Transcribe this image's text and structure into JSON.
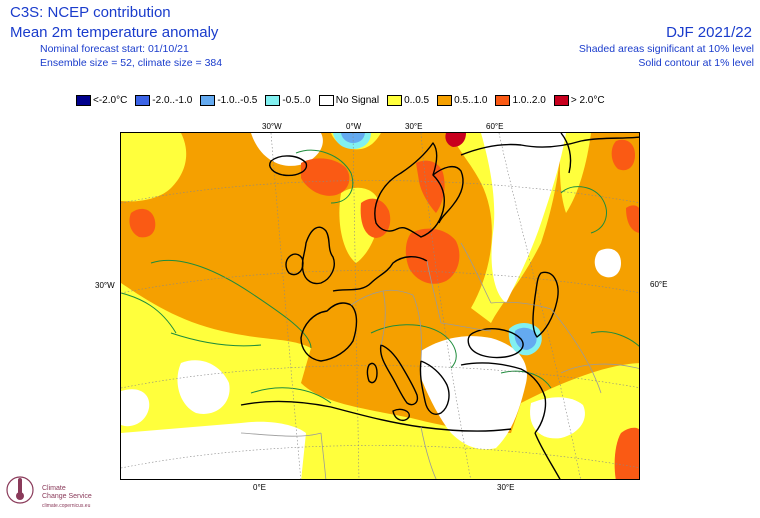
{
  "header": {
    "title": "C3S: NCEP contribution",
    "subtitle": "Mean 2m temperature anomaly",
    "forecast_start": "Nominal forecast start: 01/10/21",
    "ensemble": "Ensemble size = 52, climate size = 384",
    "season": "DJF 2021/22",
    "shaded_note": "Shaded areas significant at 10% level",
    "contour_note": "Solid contour at 1% level"
  },
  "legend": [
    {
      "label": "<-2.0°C",
      "color": "#00008c"
    },
    {
      "label": "-2.0..-1.0",
      "color": "#3c64e6"
    },
    {
      "label": "-1.0..-0.5",
      "color": "#64aaf0"
    },
    {
      "label": "-0.5..0",
      "color": "#82f0f0"
    },
    {
      "label": "No Signal",
      "color": "#ffffff"
    },
    {
      "label": "0..0.5",
      "color": "#ffff3c"
    },
    {
      "label": "0.5..1.0",
      "color": "#f5a000"
    },
    {
      "label": "1.0..2.0",
      "color": "#fa5a14"
    },
    {
      "label": "> 2.0°C",
      "color": "#c8001e"
    }
  ],
  "grid_labels": {
    "top_30w": "30°W",
    "top_0w": "0°W",
    "top_30e": "30°E",
    "top_60e": "60°E",
    "left_30w": "30°W",
    "right_60e": "60°E",
    "bottom_0e": "0°E",
    "bottom_30e": "30°E"
  },
  "logo": {
    "line1": "Climate",
    "line2": "Change Service",
    "line3": "climate.copernicus.eu"
  }
}
